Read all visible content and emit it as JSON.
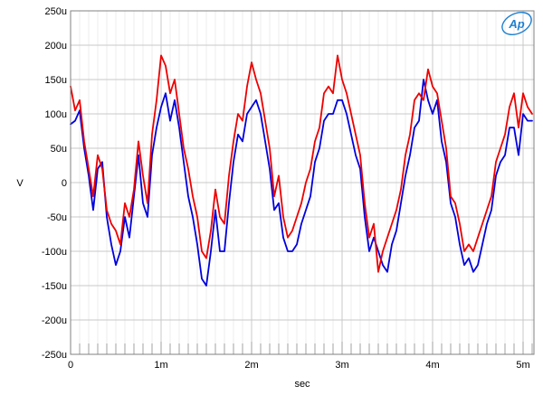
{
  "chart_data": {
    "type": "line",
    "title": "",
    "xlabel": "sec",
    "ylabel": "V",
    "xlim": [
      0,
      0.00512
    ],
    "ylim": [
      -0.00025,
      0.00025
    ],
    "grid": true,
    "legend": "none",
    "x_ticks": [
      {
        "value": 0,
        "label": "0"
      },
      {
        "value": 0.001,
        "label": "1m"
      },
      {
        "value": 0.002,
        "label": "2m"
      },
      {
        "value": 0.003,
        "label": "3m"
      },
      {
        "value": 0.004,
        "label": "4m"
      },
      {
        "value": 0.005,
        "label": "5m"
      }
    ],
    "y_ticks": [
      {
        "value": 0.00025,
        "label": "250u"
      },
      {
        "value": 0.0002,
        "label": "200u"
      },
      {
        "value": 0.00015,
        "label": "150u"
      },
      {
        "value": 0.0001,
        "label": "100u"
      },
      {
        "value": 5e-05,
        "label": "50u"
      },
      {
        "value": 0,
        "label": "0"
      },
      {
        "value": -5e-05,
        "label": "-50u"
      },
      {
        "value": -0.0001,
        "label": "-100u"
      },
      {
        "value": -0.00015,
        "label": "-150u"
      },
      {
        "value": -0.0002,
        "label": "-200u"
      },
      {
        "value": -0.00025,
        "label": "-250u"
      }
    ],
    "series": [
      {
        "color": "#0000dd",
        "x": [
          0,
          5e-05,
          0.0001,
          0.00015,
          0.0002,
          0.00025,
          0.0003,
          0.00035,
          0.0004,
          0.00045,
          0.0005,
          0.00055,
          0.0006,
          0.00065,
          0.0007,
          0.00075,
          0.0008,
          0.00085,
          0.0009,
          0.00095,
          0.001,
          0.00105,
          0.0011,
          0.00115,
          0.0012,
          0.00125,
          0.0013,
          0.00135,
          0.0014,
          0.00145,
          0.0015,
          0.00155,
          0.0016,
          0.00165,
          0.0017,
          0.00175,
          0.0018,
          0.00185,
          0.0019,
          0.00195,
          0.002,
          0.00205,
          0.0021,
          0.00215,
          0.0022,
          0.00225,
          0.0023,
          0.00235,
          0.0024,
          0.00245,
          0.0025,
          0.00255,
          0.0026,
          0.00265,
          0.0027,
          0.00275,
          0.0028,
          0.00285,
          0.0029,
          0.00295,
          0.003,
          0.00305,
          0.0031,
          0.00315,
          0.0032,
          0.00325,
          0.0033,
          0.00335,
          0.0034,
          0.00345,
          0.0035,
          0.00355,
          0.0036,
          0.00365,
          0.0037,
          0.00375,
          0.0038,
          0.00385,
          0.0039,
          0.00395,
          0.004,
          0.00405,
          0.0041,
          0.00415,
          0.0042,
          0.00425,
          0.0043,
          0.00435,
          0.0044,
          0.00445,
          0.0045,
          0.00455,
          0.0046,
          0.00465,
          0.0047,
          0.00475,
          0.0048,
          0.00485,
          0.0049,
          0.00495,
          0.005,
          0.00505,
          0.0051
        ],
        "y": [
          8.5e-05,
          9e-05,
          0.000105,
          5e-05,
          1e-05,
          -4e-05,
          2e-05,
          3e-05,
          -5e-05,
          -9e-05,
          -0.00012,
          -0.0001,
          -5e-05,
          -8e-05,
          -2e-05,
          4e-05,
          -3e-05,
          -5e-05,
          4e-05,
          8e-05,
          0.00011,
          0.00013,
          9e-05,
          0.00012,
          8e-05,
          3e-05,
          -2e-05,
          -5e-05,
          -9e-05,
          -0.00014,
          -0.00015,
          -0.0001,
          -4e-05,
          -0.0001,
          -0.0001,
          -3e-05,
          3e-05,
          7e-05,
          6e-05,
          0.0001,
          0.00011,
          0.00012,
          0.0001,
          6e-05,
          2e-05,
          -4e-05,
          -3e-05,
          -8e-05,
          -0.0001,
          -0.0001,
          -9e-05,
          -6e-05,
          -4e-05,
          -2e-05,
          3e-05,
          5e-05,
          9e-05,
          0.0001,
          0.0001,
          0.00012,
          0.00012,
          0.0001,
          7e-05,
          4e-05,
          2e-05,
          -5e-05,
          -0.0001,
          -8e-05,
          -0.0001,
          -0.00012,
          -0.00013,
          -9e-05,
          -7e-05,
          -3e-05,
          1e-05,
          4e-05,
          8e-05,
          9e-05,
          0.00015,
          0.00012,
          0.0001,
          0.00012,
          6e-05,
          3e-05,
          -3e-05,
          -5e-05,
          -9e-05,
          -0.00012,
          -0.00011,
          -0.00013,
          -0.00012,
          -9e-05,
          -6e-05,
          -4e-05,
          1e-05,
          3e-05,
          4e-05,
          8e-05,
          8e-05,
          4e-05,
          0.0001,
          9e-05,
          9e-05
        ]
      },
      {
        "color": "#ee0000",
        "x": [
          0,
          5e-05,
          0.0001,
          0.00015,
          0.0002,
          0.00025,
          0.0003,
          0.00035,
          0.0004,
          0.00045,
          0.0005,
          0.00055,
          0.0006,
          0.00065,
          0.0007,
          0.00075,
          0.0008,
          0.00085,
          0.0009,
          0.00095,
          0.001,
          0.00105,
          0.0011,
          0.00115,
          0.0012,
          0.00125,
          0.0013,
          0.00135,
          0.0014,
          0.00145,
          0.0015,
          0.00155,
          0.0016,
          0.00165,
          0.0017,
          0.00175,
          0.0018,
          0.00185,
          0.0019,
          0.00195,
          0.002,
          0.00205,
          0.0021,
          0.00215,
          0.0022,
          0.00225,
          0.0023,
          0.00235,
          0.0024,
          0.00245,
          0.0025,
          0.00255,
          0.0026,
          0.00265,
          0.0027,
          0.00275,
          0.0028,
          0.00285,
          0.0029,
          0.00295,
          0.003,
          0.00305,
          0.0031,
          0.00315,
          0.0032,
          0.00325,
          0.0033,
          0.00335,
          0.0034,
          0.00345,
          0.0035,
          0.00355,
          0.0036,
          0.00365,
          0.0037,
          0.00375,
          0.0038,
          0.00385,
          0.0039,
          0.00395,
          0.004,
          0.00405,
          0.0041,
          0.00415,
          0.0042,
          0.00425,
          0.0043,
          0.00435,
          0.0044,
          0.00445,
          0.0045,
          0.00455,
          0.0046,
          0.00465,
          0.0047,
          0.00475,
          0.0048,
          0.00485,
          0.0049,
          0.00495,
          0.005,
          0.00505,
          0.0051
        ],
        "y": [
          0.00014,
          0.000105,
          0.00012,
          6e-05,
          2e-05,
          -2e-05,
          4e-05,
          2e-05,
          -4e-05,
          -6e-05,
          -7e-05,
          -9e-05,
          -3e-05,
          -5e-05,
          -1e-05,
          6e-05,
          1e-05,
          -3e-05,
          7e-05,
          0.00012,
          0.000185,
          0.00017,
          0.00013,
          0.00015,
          0.0001,
          5e-05,
          2e-05,
          -2e-05,
          -5e-05,
          -0.0001,
          -0.00011,
          -7e-05,
          -1e-05,
          -5e-05,
          -6e-05,
          1e-05,
          6e-05,
          0.0001,
          9e-05,
          0.00014,
          0.000175,
          0.00015,
          0.00013,
          9e-05,
          5e-05,
          -2e-05,
          1e-05,
          -5e-05,
          -8e-05,
          -7e-05,
          -5e-05,
          -3e-05,
          0.0,
          2e-05,
          6e-05,
          8e-05,
          0.00013,
          0.00014,
          0.00013,
          0.000185,
          0.00015,
          0.00013,
          0.0001,
          7e-05,
          4e-05,
          -3e-05,
          -8e-05,
          -6e-05,
          -0.00013,
          -0.0001,
          -8e-05,
          -6e-05,
          -4e-05,
          -1e-05,
          4e-05,
          7e-05,
          0.00012,
          0.00013,
          0.00012,
          0.000165,
          0.00014,
          0.00013,
          9e-05,
          5e-05,
          -2e-05,
          -3e-05,
          -6e-05,
          -0.0001,
          -9e-05,
          -0.0001,
          -8e-05,
          -6e-05,
          -4e-05,
          -2e-05,
          3e-05,
          5e-05,
          7e-05,
          0.00011,
          0.00013,
          8e-05,
          0.00013,
          0.00011,
          0.0001
        ]
      }
    ]
  },
  "logo": {
    "text": "Ap",
    "color": "#1f7fd0"
  }
}
